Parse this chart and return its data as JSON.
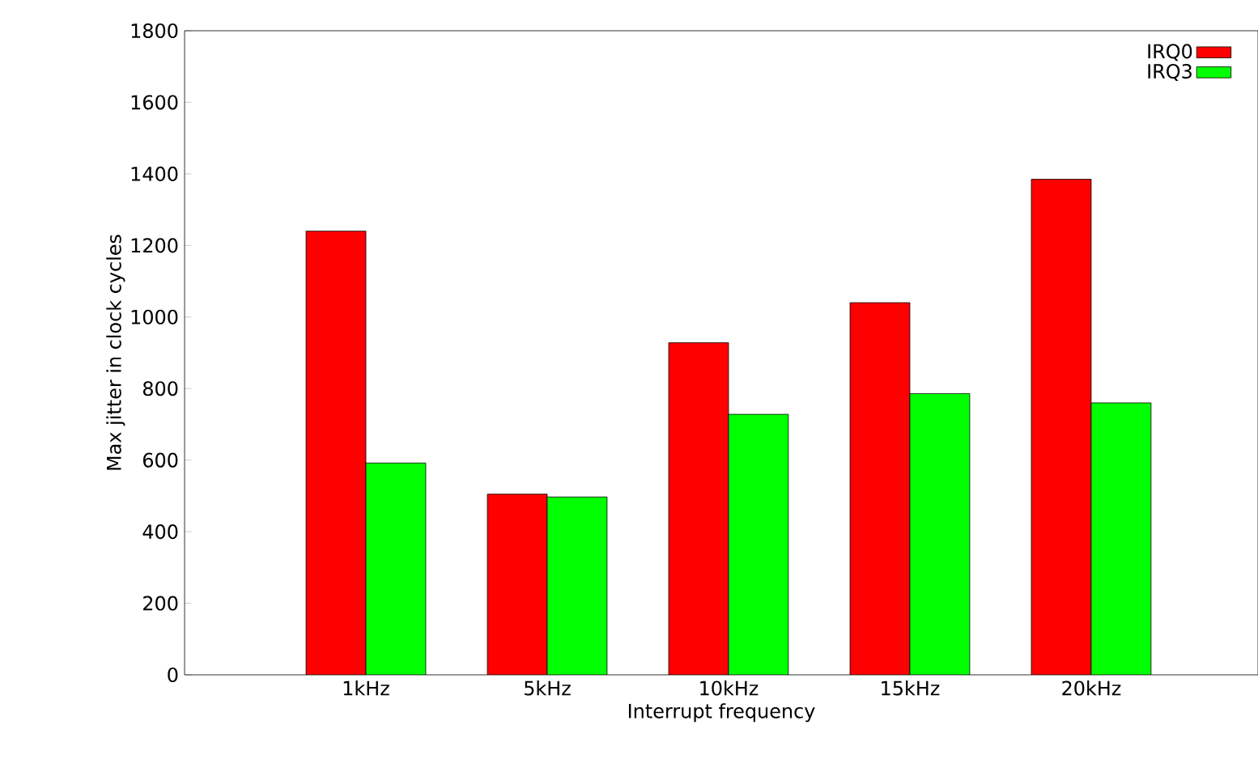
{
  "chart_data": {
    "type": "bar",
    "xlabel": "Interrupt frequency",
    "ylabel": "Max jitter in clock cycles",
    "categories": [
      "1kHz",
      "5kHz",
      "10kHz",
      "15kHz",
      "20kHz"
    ],
    "series": [
      {
        "name": "IRQ0",
        "color": "#ff0000",
        "values": [
          1240,
          505,
          928,
          1040,
          1385
        ]
      },
      {
        "name": "IRQ3",
        "color": "#00ff00",
        "values": [
          592,
          497,
          728,
          786,
          760
        ]
      }
    ],
    "ylim": [
      0,
      1800
    ],
    "yticks": [
      0,
      200,
      400,
      600,
      800,
      1000,
      1200,
      1400,
      1600,
      1800
    ],
    "legend": "top right",
    "grid": false
  }
}
